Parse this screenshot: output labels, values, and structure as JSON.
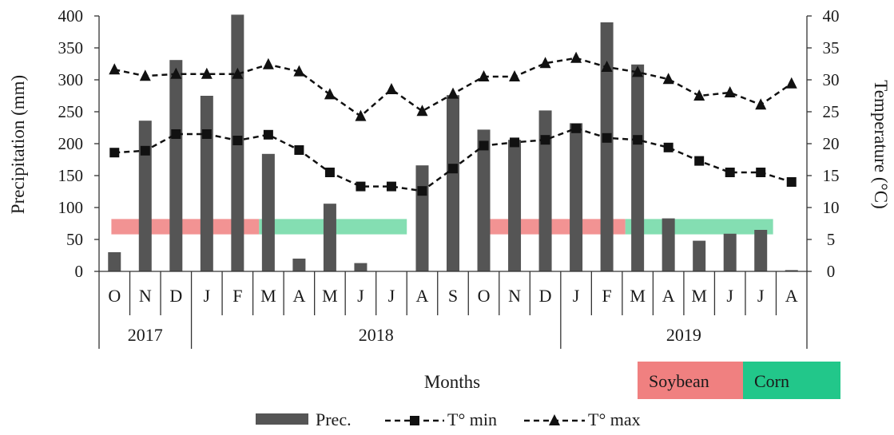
{
  "chart_data": {
    "type": "bar+line",
    "xlabel": "Months",
    "ylabel_left": "Precipitation (mm)",
    "ylabel_right": "Temperature (°C)",
    "ylim_left": [
      0,
      400
    ],
    "ylim_right": [
      0,
      40
    ],
    "yticks_left": [
      "0",
      "50",
      "100",
      "150",
      "200",
      "250",
      "300",
      "350",
      "400"
    ],
    "yticks_right": [
      "0",
      "5",
      "10",
      "15",
      "20",
      "25",
      "30",
      "35",
      "40"
    ],
    "categories": [
      "O",
      "N",
      "D",
      "J",
      "F",
      "M",
      "A",
      "M",
      "J",
      "J",
      "A",
      "S",
      "O",
      "N",
      "D",
      "J",
      "F",
      "M",
      "A",
      "M",
      "J",
      "J",
      "A"
    ],
    "years": [
      {
        "label": "2017",
        "start": 0,
        "end": 2
      },
      {
        "label": "2018",
        "start": 3,
        "end": 14
      },
      {
        "label": "2019",
        "start": 15,
        "end": 22
      }
    ],
    "series": [
      {
        "name": "Prec.",
        "type": "bar",
        "axis": "left",
        "color": "#555555",
        "values": [
          30,
          236,
          331,
          275,
          402,
          184,
          20,
          106,
          13,
          0,
          166,
          276,
          222,
          206,
          252,
          232,
          390,
          324,
          83,
          48,
          59,
          65,
          2
        ]
      },
      {
        "name": "T°  min",
        "type": "line",
        "axis": "right",
        "marker": "square",
        "color": "#111111",
        "values": [
          18.6,
          18.9,
          21.5,
          21.5,
          20.5,
          21.4,
          19.0,
          15.5,
          13.3,
          13.3,
          12.6,
          16.1,
          19.7,
          20.2,
          20.6,
          22.4,
          20.9,
          20.6,
          19.4,
          17.3,
          15.5,
          15.5,
          14.0
        ]
      },
      {
        "name": "T°  max",
        "type": "line",
        "axis": "right",
        "marker": "triangle",
        "color": "#111111",
        "values": [
          31.6,
          30.6,
          30.9,
          30.9,
          30.9,
          32.4,
          31.3,
          27.7,
          24.3,
          28.5,
          25.1,
          27.8,
          30.5,
          30.5,
          32.6,
          33.4,
          32.0,
          31.2,
          30.1,
          27.5,
          28.0,
          26.1,
          29.4
        ]
      }
    ],
    "crop_periods": [
      {
        "label": "Soybean",
        "color": "#f08080",
        "start": 0.4,
        "end": 5.2
      },
      {
        "label": "Corn",
        "color": "#6fd8a4",
        "start": 5.2,
        "end": 10.0
      },
      {
        "label": "Soybean",
        "color": "#f08080",
        "start": 12.3,
        "end": 17.1
      },
      {
        "label": "Corn",
        "color": "#6fd8a4",
        "start": 17.1,
        "end": 21.9
      }
    ],
    "crop_band_range": [
      58,
      82
    ],
    "crop_legend": [
      {
        "label": "Soybean",
        "color": "#f08080"
      },
      {
        "label": "Corn",
        "color": "#22c78a"
      }
    ],
    "legend": [
      {
        "label": "Prec.",
        "marker": "bar"
      },
      {
        "label": "T°  min",
        "marker": "square"
      },
      {
        "label": "T°  max",
        "marker": "triangle"
      }
    ],
    "legend_position": "bottom",
    "grid": false
  }
}
